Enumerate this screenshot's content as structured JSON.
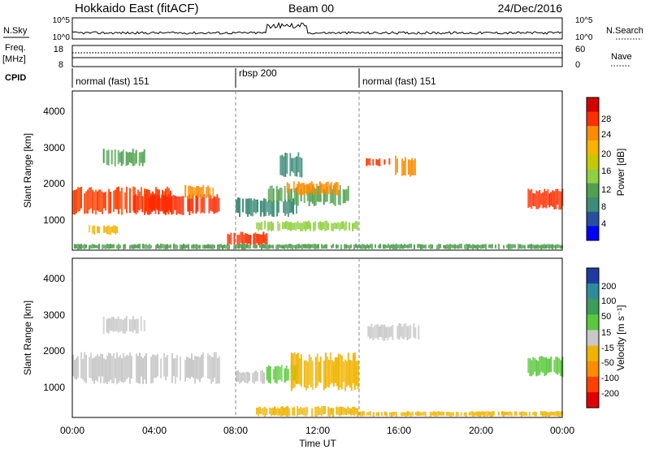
{
  "header": {
    "station": "Hokkaido East (fitACF)",
    "beam": "Beam 00",
    "date": "24/Dec/2016"
  },
  "top_panels": {
    "nsky_label": "N.Sky",
    "nsky_ticks": [
      "10^5",
      "10^0"
    ],
    "nsky_right_ticks": [
      "10^5",
      "10^0"
    ],
    "nsearch_label": "N.Search",
    "freq_label": "Freq.",
    "freq_unit": "[MHz]",
    "freq_ticks": [
      "18",
      "8"
    ],
    "nave_ticks": [
      "60",
      "0"
    ],
    "nave_label": "Nave",
    "cpid_label": "CPID"
  },
  "cpid_segments": [
    {
      "label": "normal (fast) 151",
      "start": 0,
      "end": 7.9
    },
    {
      "label": "rbsp 200",
      "start": 7.9,
      "end": 14.0
    },
    {
      "label": "normal (fast) 151",
      "start": 14.0,
      "end": 24
    }
  ],
  "power_colorbar": {
    "label": "Power [dB]",
    "ticks": [
      "28",
      "24",
      "20",
      "16",
      "12",
      "8",
      "4"
    ],
    "colors": [
      "#d40000",
      "#ff3000",
      "#ff8c00",
      "#f5b400",
      "#c8c800",
      "#90d040",
      "#50a050",
      "#3c8c78",
      "#2850a0",
      "#0000ff"
    ]
  },
  "velocity_colorbar": {
    "label": "Velocity [m s⁻¹]",
    "ticks": [
      "200",
      "100",
      "50",
      "15",
      "-15",
      "-50",
      "-100",
      "-200"
    ],
    "colors": [
      "#1e3ca0",
      "#2d8c9c",
      "#3c9c5a",
      "#5ac83c",
      "#c8c8c8",
      "#f0b400",
      "#ff8c00",
      "#ff4000",
      "#e00000"
    ]
  },
  "chart_data": [
    {
      "type": "heatmap",
      "name": "Power panel",
      "ylabel": "Slant Range [km]",
      "yticks": [
        "4000",
        "3000",
        "2000",
        "1000"
      ],
      "ylim": [
        180,
        4600
      ],
      "xlim": [
        0,
        24
      ],
      "regions": [
        {
          "x0": 0.0,
          "x1": 4.8,
          "y0": 1150,
          "y1": 1950,
          "color": "#ff4000"
        },
        {
          "x0": 3.0,
          "x1": 7.2,
          "y0": 1150,
          "y1": 1750,
          "color": "#ff2800"
        },
        {
          "x0": 5.5,
          "x1": 7.0,
          "y0": 1600,
          "y1": 2000,
          "color": "#ff8c00"
        },
        {
          "x0": 0.8,
          "x1": 2.2,
          "y0": 600,
          "y1": 900,
          "color": "#f5b400"
        },
        {
          "x0": 1.5,
          "x1": 3.5,
          "y0": 2500,
          "y1": 3000,
          "color": "#50a050"
        },
        {
          "x0": 7.5,
          "x1": 9.5,
          "y0": 300,
          "y1": 700,
          "color": "#ff3000"
        },
        {
          "x0": 8.0,
          "x1": 11.0,
          "y0": 1100,
          "y1": 1650,
          "color": "#3c8c78"
        },
        {
          "x0": 9.5,
          "x1": 13.5,
          "y0": 1400,
          "y1": 2000,
          "color": "#50a050"
        },
        {
          "x0": 10.5,
          "x1": 13.0,
          "y0": 1700,
          "y1": 2100,
          "color": "#ff8c00"
        },
        {
          "x0": 10.0,
          "x1": 11.2,
          "y0": 2200,
          "y1": 2900,
          "color": "#3c8c78"
        },
        {
          "x0": 14.3,
          "x1": 15.5,
          "y0": 2500,
          "y1": 2750,
          "color": "#ff3000"
        },
        {
          "x0": 15.8,
          "x1": 16.8,
          "y0": 2200,
          "y1": 2800,
          "color": "#ff8c00"
        },
        {
          "x0": 22.3,
          "x1": 24.0,
          "y0": 1300,
          "y1": 1900,
          "color": "#ff3000"
        },
        {
          "x0": 9.0,
          "x1": 14.0,
          "y0": 700,
          "y1": 1000,
          "color": "#90d040"
        },
        {
          "x0": 0.0,
          "x1": 24.0,
          "y0": 200,
          "y1": 360,
          "color": "#50a050"
        }
      ]
    },
    {
      "type": "heatmap",
      "name": "Velocity panel",
      "xlabel": "Time UT",
      "ylabel": "Slant Range [km]",
      "yticks": [
        "4000",
        "3000",
        "2000",
        "1000"
      ],
      "xticks": [
        "00:00",
        "04:00",
        "08:00",
        "12:00",
        "16:00",
        "20:00",
        "00:00"
      ],
      "ylim": [
        180,
        4600
      ],
      "xlim": [
        0,
        24
      ],
      "regions": [
        {
          "x0": 0.0,
          "x1": 7.2,
          "y0": 1100,
          "y1": 2000,
          "color": "#c8c8c8"
        },
        {
          "x0": 8.0,
          "x1": 9.5,
          "y0": 1100,
          "y1": 1500,
          "color": "#c8c8c8"
        },
        {
          "x0": 9.5,
          "x1": 11.0,
          "y0": 1100,
          "y1": 1650,
          "color": "#5ac83c"
        },
        {
          "x0": 10.7,
          "x1": 14.0,
          "y0": 900,
          "y1": 2000,
          "color": "#f0b400"
        },
        {
          "x0": 1.5,
          "x1": 3.5,
          "y0": 2500,
          "y1": 3000,
          "color": "#c8c8c8"
        },
        {
          "x0": 14.3,
          "x1": 17.0,
          "y0": 2300,
          "y1": 2800,
          "color": "#c8c8c8"
        },
        {
          "x0": 22.3,
          "x1": 24.0,
          "y0": 1300,
          "y1": 1900,
          "color": "#5ac83c"
        },
        {
          "x0": 9.0,
          "x1": 14.0,
          "y0": 200,
          "y1": 500,
          "color": "#f0b400"
        },
        {
          "x0": 14.0,
          "x1": 24.0,
          "y0": 200,
          "y1": 360,
          "color": "#f0b400"
        }
      ]
    }
  ]
}
